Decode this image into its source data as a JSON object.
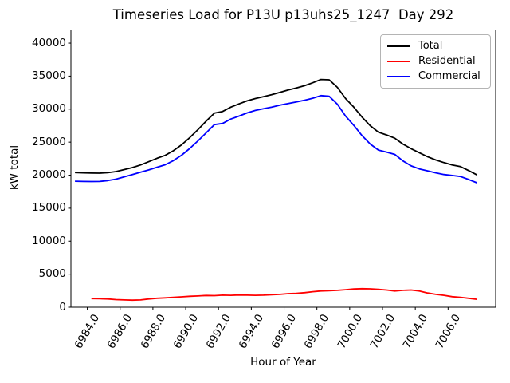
{
  "chart_data": {
    "type": "line",
    "title": "Timeseries Load for P13U p13uhs25_1247  Day 292",
    "xlabel": "Hour of Year",
    "ylabel": "kW total",
    "xlim": [
      6983.0,
      7008.9
    ],
    "ylim": [
      0,
      42000
    ],
    "grid": false,
    "legend": {
      "position": "upper right",
      "entries": [
        "Total",
        "Residential",
        "Commercial"
      ]
    },
    "xticks": {
      "values": [
        6984,
        6986,
        6988,
        6990,
        6992,
        6994,
        6996,
        6998,
        7000,
        7002,
        7004,
        7006
      ],
      "labels": [
        "6984.0",
        "6986.0",
        "6988.0",
        "6990.0",
        "6992.0",
        "6994.0",
        "6996.0",
        "6998.0",
        "7000.0",
        "7002.0",
        "7004.0",
        "7006.0"
      ]
    },
    "yticks": {
      "values": [
        0,
        5000,
        10000,
        15000,
        20000,
        25000,
        30000,
        35000,
        40000
      ],
      "labels": [
        "0",
        "5000",
        "10000",
        "15000",
        "20000",
        "25000",
        "30000",
        "35000",
        "40000"
      ]
    },
    "x": [
      6983.25,
      6983.75,
      6984.25,
      6984.75,
      6985.25,
      6985.75,
      6986.25,
      6986.75,
      6987.25,
      6987.75,
      6988.25,
      6988.75,
      6989.25,
      6989.75,
      6990.25,
      6990.75,
      6991.25,
      6991.75,
      6992.25,
      6992.75,
      6993.25,
      6993.75,
      6994.25,
      6994.75,
      6995.25,
      6995.75,
      6996.25,
      6996.75,
      6997.25,
      6997.75,
      6998.25,
      6998.75,
      6999.25,
      6999.75,
      7000.25,
      7000.75,
      7001.25,
      7001.75,
      7002.25,
      7002.75,
      7003.25,
      7003.75,
      7004.25,
      7004.75,
      7005.25,
      7005.75,
      7006.25,
      7006.75,
      7007.25,
      7007.75
    ],
    "series": [
      {
        "name": "Total",
        "color": "#000000",
        "values": [
          20400,
          20350,
          20320,
          20300,
          20380,
          20550,
          20850,
          21150,
          21550,
          22050,
          22550,
          23000,
          23700,
          24600,
          25700,
          26900,
          28200,
          29400,
          29650,
          30300,
          30800,
          31250,
          31600,
          31900,
          32200,
          32550,
          32900,
          33200,
          33550,
          34000,
          34500,
          34450,
          33300,
          31600,
          30300,
          28800,
          27500,
          26500,
          26100,
          25600,
          24700,
          24000,
          23400,
          22800,
          22300,
          21900,
          21550,
          21300,
          20700,
          20050
        ]
      },
      {
        "name": "Residential",
        "color": "#ff0000",
        "values": [
          null,
          null,
          1300,
          1280,
          1250,
          1150,
          1100,
          1060,
          1100,
          1250,
          1350,
          1420,
          1500,
          1570,
          1650,
          1700,
          1780,
          1750,
          1820,
          1800,
          1850,
          1820,
          1800,
          1830,
          1900,
          1950,
          2050,
          2100,
          2200,
          2350,
          2450,
          2500,
          2550,
          2650,
          2750,
          2800,
          2780,
          2700,
          2600,
          2450,
          2550,
          2600,
          2450,
          2150,
          1950,
          1800,
          1600,
          1500,
          1350,
          1200
        ]
      },
      {
        "name": "Commercial",
        "color": "#0000ff",
        "values": [
          19080,
          19050,
          19040,
          19050,
          19180,
          19400,
          19750,
          20090,
          20450,
          20800,
          21200,
          21580,
          22200,
          23030,
          24050,
          25200,
          26420,
          27650,
          27830,
          28500,
          28950,
          29430,
          29800,
          30070,
          30300,
          30600,
          30850,
          31100,
          31350,
          31650,
          32050,
          31950,
          30750,
          28950,
          27550,
          26000,
          24720,
          23800,
          23500,
          23150,
          22150,
          21400,
          20950,
          20650,
          20350,
          20100,
          19950,
          19800,
          19350,
          18850
        ]
      }
    ]
  }
}
